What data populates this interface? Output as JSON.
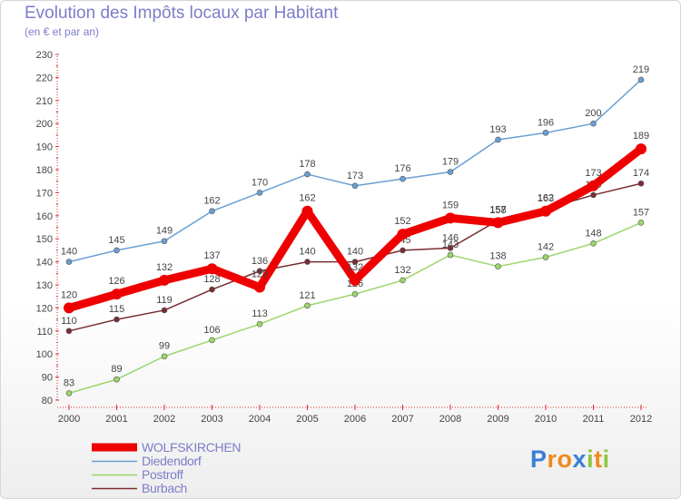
{
  "chart_data": {
    "type": "line",
    "title": "Evolution des Impôts locaux par Habitant",
    "subtitle": "(en € et par an)",
    "x": [
      "2000",
      "2001",
      "2002",
      "2003",
      "2004",
      "2005",
      "2006",
      "2007",
      "2008",
      "2009",
      "2010",
      "2011",
      "2012"
    ],
    "ylim": [
      80,
      230
    ],
    "yticks": [
      80,
      90,
      100,
      110,
      120,
      130,
      140,
      150,
      160,
      170,
      180,
      190,
      200,
      210,
      220,
      230
    ],
    "grid": false,
    "legend_position": "bottom-left",
    "series": [
      {
        "name": "Diedendorf",
        "color": "#6a9fd4",
        "values": [
          140,
          145,
          149,
          162,
          170,
          178,
          173,
          176,
          179,
          193,
          196,
          200,
          219
        ]
      },
      {
        "name": "Postroff",
        "color": "#9bd66a",
        "values": [
          83,
          89,
          99,
          106,
          113,
          121,
          126,
          132,
          143,
          138,
          142,
          148,
          157
        ]
      },
      {
        "name": "Burbach",
        "color": "#7a2d32",
        "values": [
          110,
          115,
          119,
          128,
          136,
          140,
          140,
          145,
          146,
          158,
          163,
          169,
          174
        ]
      },
      {
        "name": "WOLFSKIRCHEN",
        "color": "#ee0000",
        "values": [
          120,
          126,
          132,
          137,
          129,
          162,
          132,
          152,
          159,
          157,
          162,
          173,
          189
        ]
      }
    ]
  },
  "legend": [
    "WOLFSKIRCHEN",
    "Diedendorf",
    "Postroff",
    "Burbach"
  ],
  "logo": {
    "text": "Proxiti",
    "letters": [
      "P",
      "r",
      "o",
      "x",
      "i",
      "t",
      "i"
    ],
    "colors": [
      "#3a7fd5",
      "#f08a1c",
      "#f08a1c",
      "#3a7fd5",
      "#8ec63f",
      "#f08a1c",
      "#8ec63f"
    ]
  }
}
